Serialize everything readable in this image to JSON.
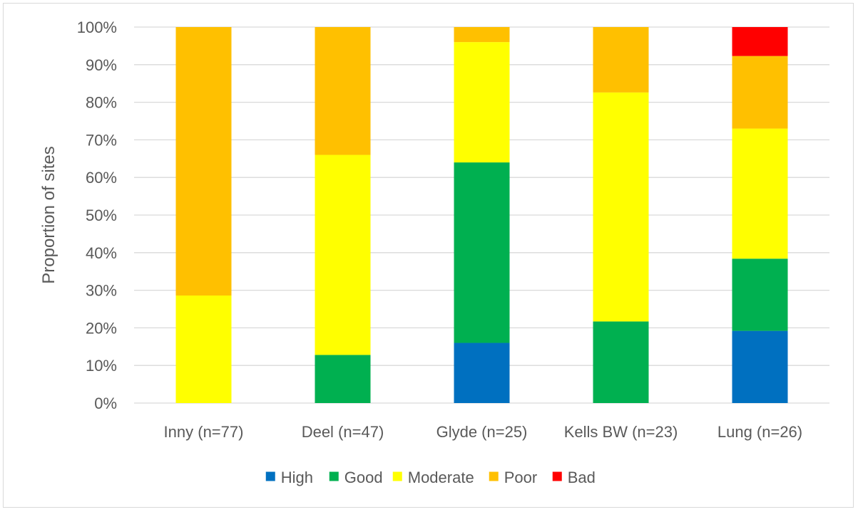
{
  "chart_data": {
    "type": "bar",
    "stacked": true,
    "categories": [
      "Inny (n=77)",
      "Deel (n=47)",
      "Glyde (n=25)",
      "Kells BW (n=23)",
      "Lung (n=26)"
    ],
    "series": [
      {
        "name": "High",
        "color": "#0070C0",
        "values": [
          0,
          0,
          16,
          0,
          19.2
        ]
      },
      {
        "name": "Good",
        "color": "#00B050",
        "values": [
          0,
          12.8,
          48,
          21.7,
          19.2
        ]
      },
      {
        "name": "Moderate",
        "color": "#FFFF00",
        "values": [
          28.6,
          53.2,
          32,
          60.9,
          34.6
        ]
      },
      {
        "name": "Poor",
        "color": "#FFC000",
        "values": [
          71.4,
          34,
          4,
          17.4,
          19.3
        ]
      },
      {
        "name": "Bad",
        "color": "#FF0000",
        "values": [
          0,
          0,
          0,
          0,
          7.7
        ]
      }
    ],
    "yticks": [
      "0%",
      "10%",
      "20%",
      "30%",
      "40%",
      "50%",
      "60%",
      "70%",
      "80%",
      "90%",
      "100%"
    ],
    "ylabel": "Proportion of sites",
    "xlabel": "",
    "title": "",
    "ylim": [
      0,
      100
    ],
    "grid": true,
    "legend_position": "bottom"
  }
}
